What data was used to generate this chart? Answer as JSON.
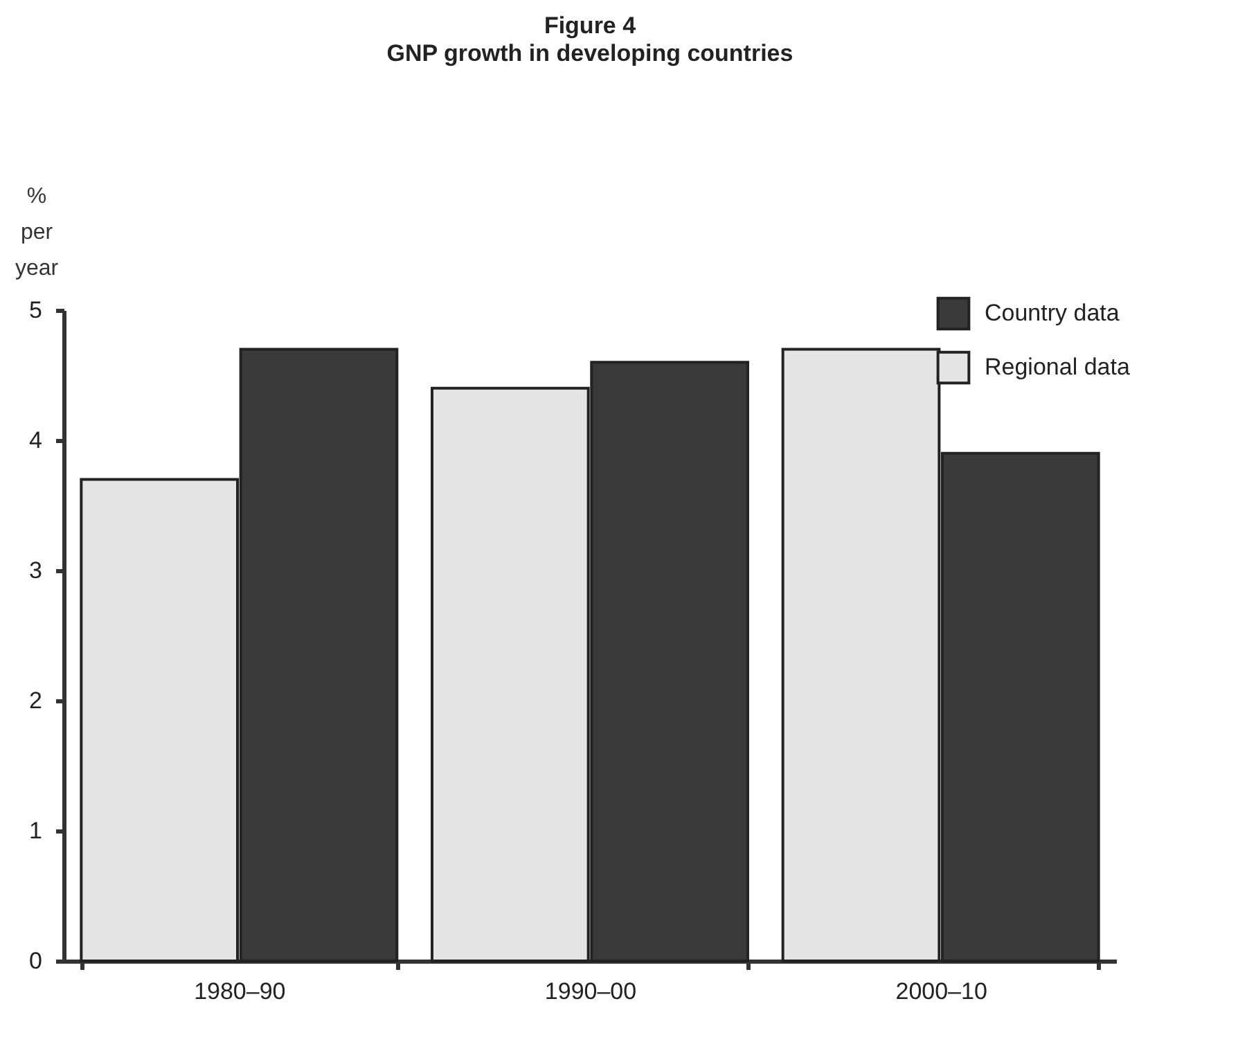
{
  "chart_data": {
    "type": "bar",
    "title": "Figure 4",
    "subtitle": "GNP growth in developing countries",
    "ylabel": "% per year",
    "categories": [
      "1980–90",
      "1990–00",
      "2000–10"
    ],
    "series": [
      {
        "name": "Regional data",
        "color": "#e4e4e4",
        "values": [
          3.7,
          4.4,
          4.7
        ]
      },
      {
        "name": "Country data",
        "color": "#3a3a3a",
        "values": [
          4.7,
          4.6,
          3.9
        ]
      }
    ],
    "ylim": [
      0,
      5
    ],
    "yticks": [
      0,
      1,
      2,
      3,
      4,
      5
    ],
    "grid": false,
    "legend": "top right"
  }
}
